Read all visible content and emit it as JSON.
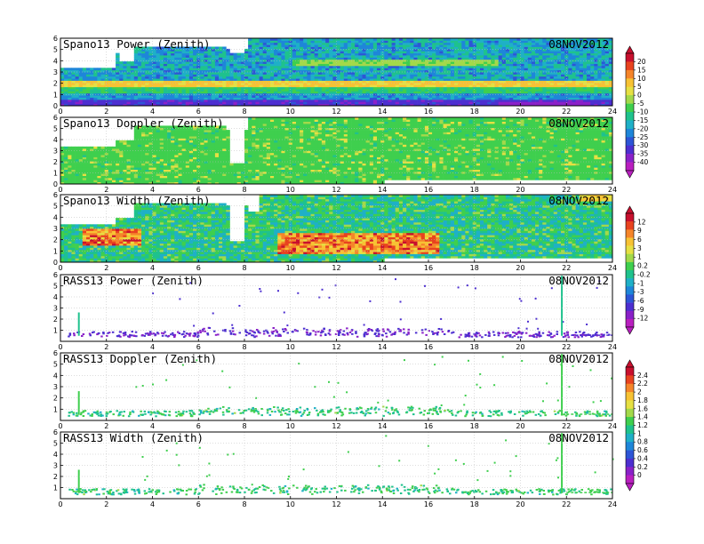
{
  "date_label": "08NOV2012",
  "chart_data": [
    {
      "type": "heatmap",
      "title": "Spano13  Power (Zenith)",
      "xlim": [
        0,
        24
      ],
      "ylim": [
        0,
        6
      ],
      "xticks": [
        0,
        2,
        4,
        6,
        8,
        10,
        12,
        14,
        16,
        18,
        20,
        22,
        24
      ],
      "yticks": [
        0,
        1,
        2,
        3,
        4,
        5,
        6
      ],
      "colorbar": "power_doppler",
      "grid": true
    },
    {
      "type": "heatmap",
      "title": "Spano13  Doppler (Zenith)",
      "xlim": [
        0,
        24
      ],
      "ylim": [
        0,
        6
      ],
      "xticks": [
        0,
        2,
        4,
        6,
        8,
        10,
        12,
        14,
        16,
        18,
        20,
        22,
        24
      ],
      "yticks": [
        0,
        1,
        2,
        3,
        4,
        5,
        6
      ],
      "colorbar": "power_doppler",
      "grid": true
    },
    {
      "type": "heatmap",
      "title": "Spano13  Width (Zenith)",
      "xlim": [
        0,
        24
      ],
      "ylim": [
        0,
        6
      ],
      "xticks": [
        0,
        2,
        4,
        6,
        8,
        10,
        12,
        14,
        16,
        18,
        20,
        22,
        24
      ],
      "yticks": [
        0,
        1,
        2,
        3,
        4,
        5,
        6
      ],
      "colorbar": "width_power",
      "grid": true
    },
    {
      "type": "scatter",
      "title": "RASS13 Power (Zenith)",
      "xlim": [
        0,
        24
      ],
      "ylim": [
        0,
        6
      ],
      "xticks": [
        0,
        2,
        4,
        6,
        8,
        10,
        12,
        14,
        16,
        18,
        20,
        22,
        24
      ],
      "yticks": [
        1,
        2,
        3,
        4,
        5,
        6
      ],
      "colorbar": "width_power",
      "grid": true
    },
    {
      "type": "scatter",
      "title": "RASS13 Doppler (Zenith)",
      "xlim": [
        0,
        24
      ],
      "ylim": [
        0,
        6
      ],
      "xticks": [
        0,
        2,
        4,
        6,
        8,
        10,
        12,
        14,
        16,
        18,
        20,
        22,
        24
      ],
      "yticks": [
        1,
        2,
        3,
        4,
        5,
        6
      ],
      "colorbar": "width_doppler",
      "grid": true
    },
    {
      "type": "scatter",
      "title": "RASS13 Width (Zenith)",
      "xlim": [
        0,
        24
      ],
      "ylim": [
        0,
        6
      ],
      "xticks": [
        0,
        2,
        4,
        6,
        8,
        10,
        12,
        14,
        16,
        18,
        20,
        22,
        24
      ],
      "yticks": [
        1,
        2,
        3,
        4,
        5,
        6
      ],
      "colorbar": "width_doppler",
      "grid": true
    }
  ],
  "colorbars": {
    "power_doppler": {
      "labels": [
        "20",
        "15",
        "10",
        "5",
        "0",
        "-5",
        "-10",
        "-15",
        "-20",
        "-25",
        "-30",
        "-35",
        "-40"
      ],
      "colors": [
        "#c8102e",
        "#e8431f",
        "#f5852a",
        "#f7c234",
        "#e6e043",
        "#a3d94a",
        "#3fcf4e",
        "#1fc28d",
        "#1fb0c7",
        "#1e86d9",
        "#2d55d6",
        "#4d2fd0",
        "#8a21c8",
        "#b91fbf"
      ]
    },
    "width_power": {
      "labels": [
        "12",
        "9",
        "6",
        "3",
        "1",
        "0.2",
        "-0.2",
        "-1",
        "-3",
        "-6",
        "-9",
        "-12"
      ],
      "colors": [
        "#c8102e",
        "#e8431f",
        "#f5852a",
        "#f7c234",
        "#e6e043",
        "#a3d94a",
        "#3fcf4e",
        "#1fc28d",
        "#1fb0c7",
        "#1e86d9",
        "#2d55d6",
        "#4d2fd0",
        "#8a21c8",
        "#b91fbf"
      ]
    },
    "width_doppler": {
      "labels": [
        "2.4",
        "2.2",
        "2",
        "1.8",
        "1.6",
        "1.4",
        "1.2",
        "1",
        "0.8",
        "0.6",
        "0.4",
        "0.2",
        "0"
      ],
      "colors": [
        "#c8102e",
        "#e8431f",
        "#f5852a",
        "#f7c234",
        "#e6e043",
        "#a3d94a",
        "#3fcf4e",
        "#1fc28d",
        "#1fb0c7",
        "#1e86d9",
        "#2d55d6",
        "#4d2fd0",
        "#8a21c8",
        "#b91fbf"
      ]
    }
  }
}
